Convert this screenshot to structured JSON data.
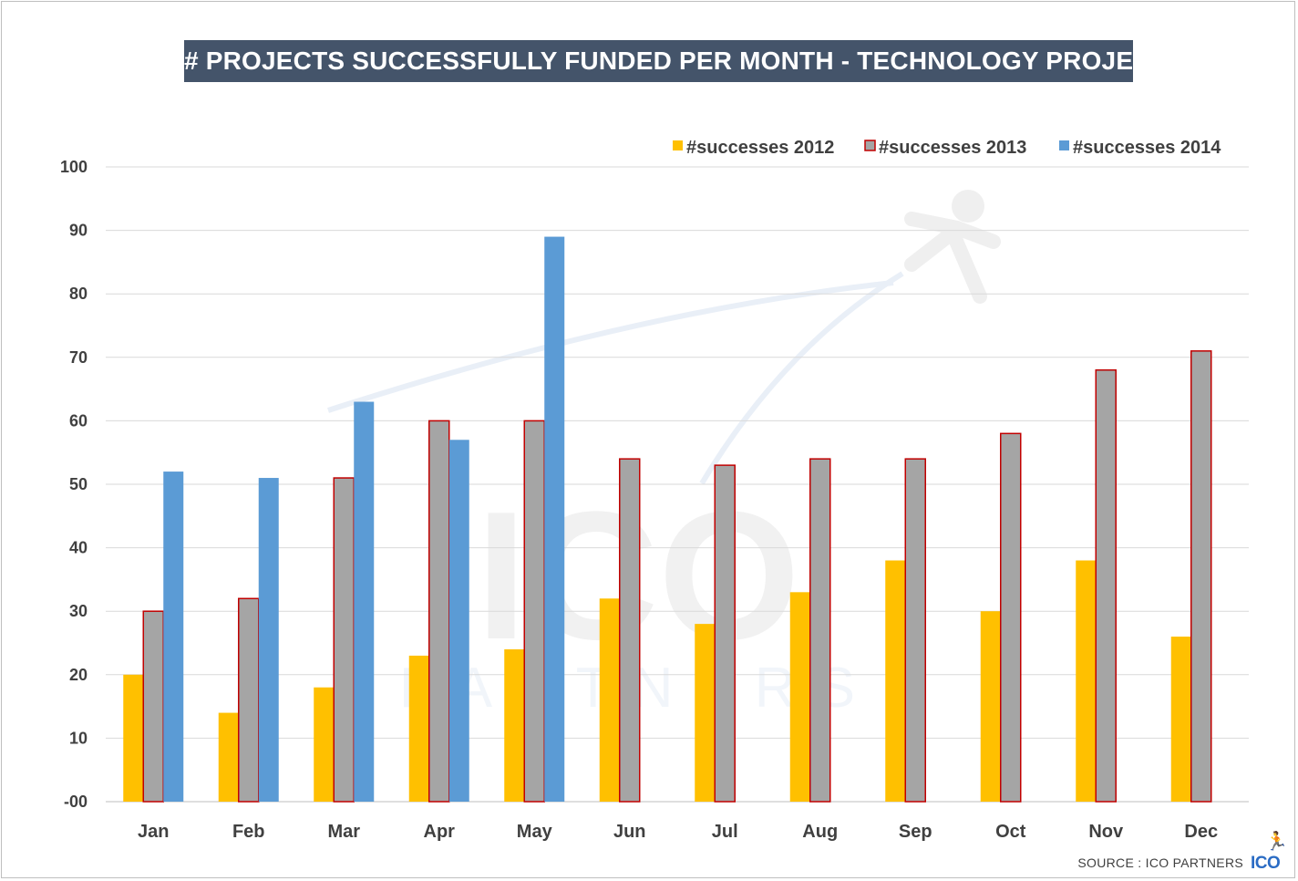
{
  "title": "# PROJECTS SUCCESSFULLY FUNDED PER MONTH - TECHNOLOGY PROJECTS",
  "source": "SOURCE : ICO PARTNERS",
  "logo_text": "ICO",
  "watermark": {
    "main": "ICO",
    "sub": "PARTNERS"
  },
  "colors": {
    "s2012": "#ffc000",
    "s2013": "#a5a5a5",
    "s2013_border": "#c00000",
    "s2014": "#5b9bd5",
    "title_bg": "#44546a",
    "grid": "#d9d9d9"
  },
  "chart_data": {
    "type": "bar",
    "title": "# PROJECTS SUCCESSFULLY FUNDED PER MONTH - TECHNOLOGY PROJECTS",
    "categories": [
      "Jan",
      "Feb",
      "Mar",
      "Apr",
      "May",
      "Jun",
      "Jul",
      "Aug",
      "Sep",
      "Oct",
      "Nov",
      "Dec"
    ],
    "series": [
      {
        "name": "#successes 2012",
        "values": [
          20,
          14,
          18,
          23,
          24,
          32,
          28,
          33,
          38,
          30,
          38,
          26
        ]
      },
      {
        "name": "#successes 2013",
        "values": [
          30,
          32,
          51,
          60,
          60,
          54,
          53,
          54,
          54,
          58,
          68,
          71
        ]
      },
      {
        "name": "#successes 2014",
        "values": [
          52,
          51,
          63,
          57,
          89,
          null,
          null,
          null,
          null,
          null,
          null,
          null
        ]
      }
    ],
    "yticks": [
      "-00",
      "10",
      "20",
      "30",
      "40",
      "50",
      "60",
      "70",
      "80",
      "90",
      "100"
    ],
    "ylim": [
      0,
      100
    ],
    "xlabel": "",
    "ylabel": "",
    "legend_position": "top-right",
    "grid": true
  }
}
